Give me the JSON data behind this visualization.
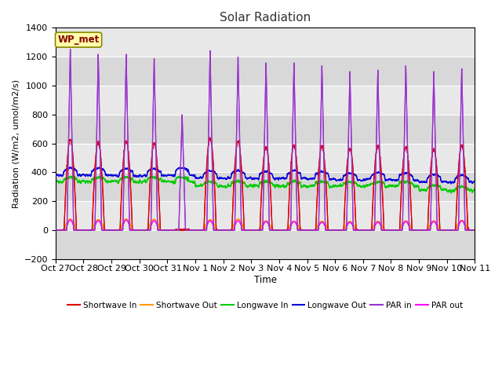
{
  "title": "Solar Radiation",
  "xlabel": "Time",
  "ylabel": "Radiation (W/m2, umol/m2/s)",
  "ylim": [
    -200,
    1400
  ],
  "yticks": [
    -200,
    0,
    200,
    400,
    600,
    800,
    1000,
    1200,
    1400
  ],
  "x_tick_labels": [
    "Oct 27",
    "Oct 28",
    "Oct 29",
    "Oct 30",
    "Oct 31",
    "Nov 1",
    "Nov 2",
    "Nov 3",
    "Nov 4",
    "Nov 5",
    "Nov 6",
    "Nov 7",
    "Nov 8",
    "Nov 9",
    "Nov 10",
    "Nov 11"
  ],
  "station_label": "WP_met",
  "bg_color": "#e8e8e8",
  "colors": {
    "shortwave_in": "#dd0000",
    "shortwave_out": "#ff9900",
    "longwave_in": "#00cc00",
    "longwave_out": "#0000dd",
    "par_in": "#9933cc",
    "par_out": "#ff00ff"
  },
  "legend_labels": [
    "Shortwave In",
    "Shortwave Out",
    "Longwave In",
    "Longwave Out",
    "PAR in",
    "PAR out"
  ],
  "n_days": 15,
  "pts_per_day": 288,
  "par_in_peaks": [
    1255,
    1220,
    1220,
    1190,
    800,
    1245,
    1200,
    1160,
    1160,
    1140,
    1100,
    1110,
    1140,
    1100,
    1120
  ],
  "sw_in_peaks": [
    625,
    605,
    615,
    600,
    0,
    635,
    615,
    575,
    585,
    580,
    565,
    580,
    575,
    560,
    585
  ],
  "sw_out_peaks": [
    90,
    85,
    90,
    88,
    0,
    85,
    90,
    75,
    72,
    72,
    70,
    72,
    75,
    75,
    80
  ],
  "par_out_peaks": [
    70,
    65,
    70,
    65,
    0,
    65,
    65,
    60,
    60,
    55,
    55,
    55,
    60,
    60,
    65
  ],
  "lw_in_day_base": [
    335,
    335,
    335,
    335,
    335,
    305,
    305,
    305,
    305,
    305,
    305,
    305,
    305,
    280,
    270
  ],
  "lw_out_day_base": [
    380,
    380,
    375,
    375,
    380,
    360,
    360,
    355,
    360,
    355,
    345,
    350,
    345,
    335,
    330
  ]
}
